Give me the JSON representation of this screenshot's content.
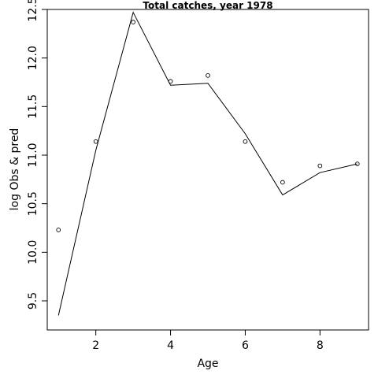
{
  "chart_data": {
    "type": "scatter+line",
    "title": "Total catches, year 1978",
    "xlabel": "Age",
    "ylabel": "log Obs & pred",
    "xlim": [
      0.7,
      9.3
    ],
    "ylim": [
      9.2,
      12.5
    ],
    "xticks": [
      2,
      4,
      6,
      8
    ],
    "yticks": [
      9.5,
      10.0,
      10.5,
      11.0,
      11.5,
      12.0,
      12.5
    ],
    "ytick_labels": [
      "9.5",
      "10.0",
      "10.5",
      "11.0",
      "11.5",
      "12.0",
      "12.5"
    ],
    "grid": false,
    "series": [
      {
        "kind": "points",
        "x": [
          1,
          2,
          3,
          4,
          5,
          6,
          7,
          8,
          9
        ],
        "values": [
          10.23,
          11.14,
          12.37,
          11.76,
          11.82,
          11.14,
          10.72,
          10.89,
          10.91
        ]
      },
      {
        "kind": "line",
        "x": [
          1,
          2,
          3,
          4,
          5,
          6,
          7,
          8,
          9
        ],
        "values": [
          9.35,
          11.05,
          12.47,
          11.72,
          11.74,
          11.22,
          10.59,
          10.82,
          10.91
        ]
      }
    ]
  }
}
